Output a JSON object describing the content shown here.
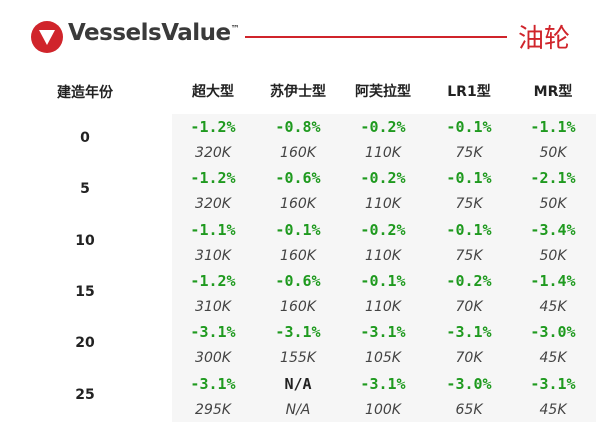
{
  "header": {
    "brand": "VesselsValue",
    "trademark": "™",
    "title": "油轮"
  },
  "table": {
    "age_header": "建造年份",
    "columns": [
      "超大型",
      "苏伊士型",
      "阿芙拉型",
      "LR1型",
      "MR型"
    ],
    "rows": [
      {
        "age": "0",
        "changes": [
          "-1.2%",
          "-0.8%",
          "-0.2%",
          "-0.1%",
          "-1.1%"
        ],
        "values": [
          "320K",
          "160K",
          "110K",
          "75K",
          "50K"
        ]
      },
      {
        "age": "5",
        "changes": [
          "-1.2%",
          "-0.6%",
          "-0.2%",
          "-0.1%",
          "-2.1%"
        ],
        "values": [
          "320K",
          "160K",
          "110K",
          "75K",
          "50K"
        ]
      },
      {
        "age": "10",
        "changes": [
          "-1.1%",
          "-0.1%",
          "-0.2%",
          "-0.1%",
          "-3.4%"
        ],
        "values": [
          "310K",
          "160K",
          "110K",
          "75K",
          "50K"
        ]
      },
      {
        "age": "15",
        "changes": [
          "-1.2%",
          "-0.6%",
          "-0.1%",
          "-0.2%",
          "-1.4%"
        ],
        "values": [
          "310K",
          "160K",
          "110K",
          "70K",
          "45K"
        ]
      },
      {
        "age": "20",
        "changes": [
          "-3.1%",
          "-3.1%",
          "-3.1%",
          "-3.1%",
          "-3.0%"
        ],
        "values": [
          "300K",
          "155K",
          "105K",
          "70K",
          "45K"
        ]
      },
      {
        "age": "25",
        "changes": [
          "-3.1%",
          "N/A",
          "-3.1%",
          "-3.0%",
          "-3.1%"
        ],
        "values": [
          "295K",
          "N/A",
          "100K",
          "65K",
          "45K"
        ]
      }
    ]
  }
}
